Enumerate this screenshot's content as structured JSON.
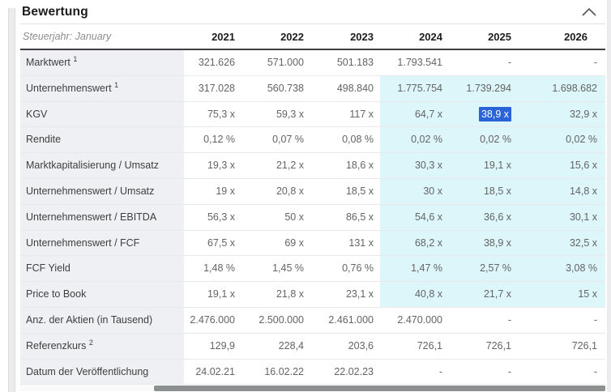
{
  "panel": {
    "title": "Bewertung"
  },
  "table": {
    "corner_label": "Steuerjahr: January",
    "years": [
      "2021",
      "2022",
      "2023",
      "2024",
      "2025",
      "2026"
    ],
    "selection": {
      "row": 2,
      "col": 4
    },
    "rows": [
      {
        "label": "Marktwert",
        "footnote": "1",
        "estimate_highlight": false,
        "values": [
          "321.626",
          "571.000",
          "501.183",
          "1.793.541",
          "-",
          "-"
        ]
      },
      {
        "label": "Unternehmenswert",
        "footnote": "1",
        "estimate_highlight": true,
        "values": [
          "317.028",
          "560.738",
          "498.840",
          "1.775.754",
          "1.739.294",
          "1.698.682"
        ]
      },
      {
        "label": "KGV",
        "footnote": "",
        "estimate_highlight": true,
        "values": [
          "75,3 x",
          "59,3 x",
          "117 x",
          "64,7 x",
          "38,9 x",
          "32,9 x"
        ]
      },
      {
        "label": "Rendite",
        "footnote": "",
        "estimate_highlight": true,
        "values": [
          "0,12 %",
          "0,07 %",
          "0,08 %",
          "0,02 %",
          "0,02 %",
          "0,02 %"
        ]
      },
      {
        "label": "Marktkapitalisierung / Umsatz",
        "footnote": "",
        "estimate_highlight": true,
        "values": [
          "19,3 x",
          "21,2 x",
          "18,6 x",
          "30,3 x",
          "19,1 x",
          "15,6 x"
        ]
      },
      {
        "label": "Unternehmenswert / Umsatz",
        "footnote": "",
        "estimate_highlight": true,
        "values": [
          "19 x",
          "20,8 x",
          "18,5 x",
          "30 x",
          "18,5 x",
          "14,8 x"
        ]
      },
      {
        "label": "Unternehmenswert / EBITDA",
        "footnote": "",
        "estimate_highlight": true,
        "values": [
          "56,3 x",
          "50 x",
          "86,5 x",
          "54,6 x",
          "36,6 x",
          "30,1 x"
        ]
      },
      {
        "label": "Unternehmenswert / FCF",
        "footnote": "",
        "estimate_highlight": true,
        "values": [
          "67,5 x",
          "69 x",
          "131 x",
          "68,2 x",
          "38,9 x",
          "32,5 x"
        ]
      },
      {
        "label": "FCF Yield",
        "footnote": "",
        "estimate_highlight": true,
        "values": [
          "1,48 %",
          "1,45 %",
          "0,76 %",
          "1,47 %",
          "2,57 %",
          "3,08 %"
        ]
      },
      {
        "label": "Price to Book",
        "footnote": "",
        "estimate_highlight": true,
        "values": [
          "19,1 x",
          "21,8 x",
          "23,1 x",
          "40,8 x",
          "21,7 x",
          "15 x"
        ]
      },
      {
        "label": "Anz. der Aktien (in Tausend)",
        "footnote": "",
        "estimate_highlight": false,
        "values": [
          "2.476.000",
          "2.500.000",
          "2.461.000",
          "2.470.000",
          "-",
          "-"
        ]
      },
      {
        "label": "Referenzkurs",
        "footnote": "2",
        "estimate_highlight": false,
        "values": [
          "129,9",
          "228,4",
          "203,6",
          "726,1",
          "726,1",
          "726,1"
        ]
      },
      {
        "label": "Datum der Veröffentlichung",
        "footnote": "",
        "estimate_highlight": false,
        "values": [
          "24.02.21",
          "16.02.22",
          "22.02.23",
          "-",
          "-",
          "-"
        ]
      }
    ]
  },
  "icons": {
    "collapse": "chevron-up-icon"
  },
  "colors": {
    "estimate_bg": "#ddf6f9",
    "selection_bg": "#2a62d8",
    "label_column_bg": "#eef0f3"
  }
}
